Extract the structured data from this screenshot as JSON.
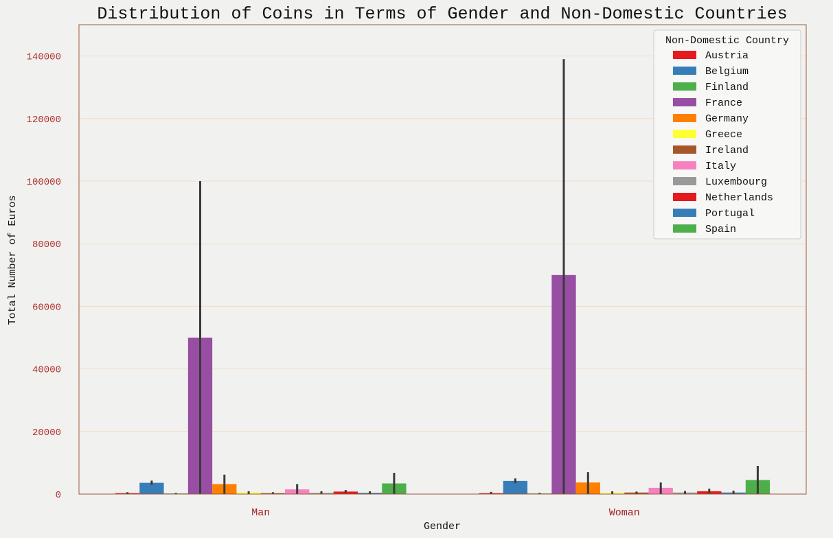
{
  "chart_data": {
    "type": "bar",
    "title": "Distribution of Coins in Terms of Gender and Non-Domestic Countries",
    "xlabel": "Gender",
    "ylabel": "Total Number of Euros",
    "categories": [
      "Man",
      "Woman"
    ],
    "ylim": [
      0,
      150000
    ],
    "yticks": [
      0,
      20000,
      40000,
      60000,
      80000,
      100000,
      120000,
      140000
    ],
    "grid": "horizontal",
    "legend_title": "Non-Domestic Country",
    "legend_position": "top-right",
    "series": [
      {
        "name": "Austria",
        "color": "#e41a1c",
        "values": [
          300,
          300
        ],
        "ci": [
          [
            0,
            600
          ],
          [
            0,
            700
          ]
        ]
      },
      {
        "name": "Belgium",
        "color": "#377eb8",
        "values": [
          3600,
          4200
        ],
        "ci": [
          [
            3000,
            4300
          ],
          [
            3500,
            5000
          ]
        ]
      },
      {
        "name": "Finland",
        "color": "#4daf4a",
        "values": [
          200,
          200
        ],
        "ci": [
          [
            100,
            400
          ],
          [
            100,
            400
          ]
        ]
      },
      {
        "name": "France",
        "color": "#984ea3",
        "values": [
          50000,
          70000
        ],
        "ci": [
          [
            0,
            100000
          ],
          [
            0,
            139000
          ]
        ]
      },
      {
        "name": "Germany",
        "color": "#ff7f00",
        "values": [
          3200,
          3700
        ],
        "ci": [
          [
            0,
            6200
          ],
          [
            0,
            7000
          ]
        ]
      },
      {
        "name": "Greece",
        "color": "#ffff33",
        "values": [
          500,
          400
        ],
        "ci": [
          [
            0,
            900
          ],
          [
            0,
            900
          ]
        ]
      },
      {
        "name": "Ireland",
        "color": "#a65628",
        "values": [
          300,
          500
        ],
        "ci": [
          [
            0,
            600
          ],
          [
            0,
            800
          ]
        ]
      },
      {
        "name": "Italy",
        "color": "#f781bf",
        "values": [
          1500,
          2000
        ],
        "ci": [
          [
            0,
            3200
          ],
          [
            0,
            3700
          ]
        ]
      },
      {
        "name": "Luxembourg",
        "color": "#999999",
        "values": [
          400,
          500
        ],
        "ci": [
          [
            0,
            900
          ],
          [
            0,
            1000
          ]
        ]
      },
      {
        "name": "Netherlands",
        "color": "#e41a1c",
        "values": [
          800,
          900
        ],
        "ci": [
          [
            400,
            1300
          ],
          [
            300,
            1700
          ]
        ]
      },
      {
        "name": "Portugal",
        "color": "#377eb8",
        "values": [
          400,
          500
        ],
        "ci": [
          [
            0,
            900
          ],
          [
            0,
            1100
          ]
        ]
      },
      {
        "name": "Spain",
        "color": "#4daf4a",
        "values": [
          3400,
          4500
        ],
        "ci": [
          [
            0,
            6800
          ],
          [
            0,
            9000
          ]
        ]
      }
    ]
  }
}
